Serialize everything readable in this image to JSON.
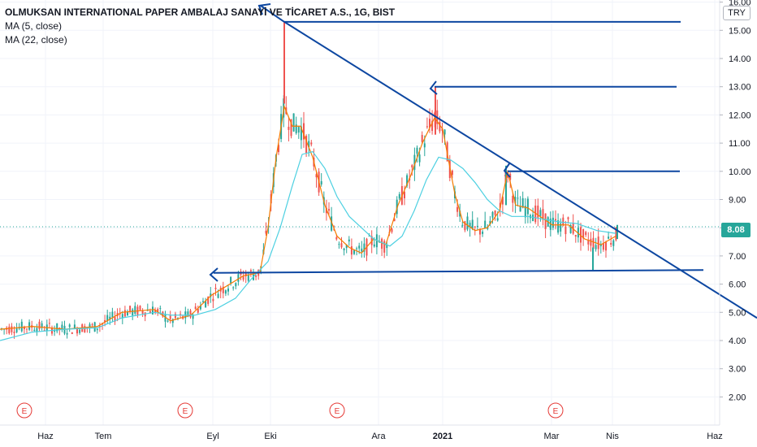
{
  "legend": {
    "title": "OLMUKSAN INTERNATIONAL PAPER AMBALAJ SANAYİ VE TİCARET A.S., 1G, BIST",
    "ma5": "MA (5, close)",
    "ma22": "MA (22, close)"
  },
  "currency": "TRY",
  "last_price_label": "8.08",
  "colors": {
    "up": "#26a69a",
    "down": "#ef5350",
    "ma5": "#f57c00",
    "ma22": "#4dd0e1",
    "trend": "#0d47a1",
    "event": "#e53935"
  },
  "chart_data": {
    "type": "line",
    "title": "OLMUKSAN INTERNATIONAL PAPER AMBALAJ SANAYİ VE TİCARET A.S., 1G, BIST",
    "ylim": [
      1.5,
      16.0
    ],
    "y_ticks": [
      "16.00",
      "15.00",
      "14.00",
      "13.00",
      "12.00",
      "11.00",
      "10.00",
      "9.00",
      "8.00",
      "7.00",
      "6.00",
      "5.00",
      "4.00",
      "3.00",
      "2.00"
    ],
    "x_ticks": [
      "Haz",
      "Tem",
      "Eyl",
      "Eki",
      "Ara",
      "2021",
      "Mar",
      "Nis",
      "Haz"
    ],
    "last_price": 8.08,
    "series": [
      {
        "name": "MA (5, close)",
        "points": [
          [
            0,
            4.4
          ],
          [
            40,
            4.5
          ],
          [
            80,
            4.4
          ],
          [
            120,
            4.5
          ],
          [
            150,
            5.0
          ],
          [
            190,
            5.1
          ],
          [
            210,
            4.7
          ],
          [
            235,
            4.9
          ],
          [
            260,
            5.6
          ],
          [
            300,
            6.3
          ],
          [
            320,
            6.4
          ],
          [
            330,
            8.0
          ],
          [
            340,
            10.5
          ],
          [
            350,
            12.3
          ],
          [
            360,
            11.6
          ],
          [
            370,
            11.6
          ],
          [
            385,
            10.5
          ],
          [
            400,
            8.8
          ],
          [
            415,
            7.7
          ],
          [
            430,
            7.3
          ],
          [
            445,
            7.1
          ],
          [
            460,
            7.6
          ],
          [
            475,
            7.4
          ],
          [
            490,
            8.8
          ],
          [
            505,
            9.8
          ],
          [
            520,
            11.0
          ],
          [
            535,
            11.9
          ],
          [
            545,
            11.5
          ],
          [
            560,
            9.2
          ],
          [
            570,
            8.2
          ],
          [
            585,
            7.9
          ],
          [
            600,
            8.0
          ],
          [
            615,
            8.6
          ],
          [
            625,
            10.0
          ],
          [
            635,
            8.8
          ],
          [
            650,
            8.7
          ],
          [
            665,
            8.4
          ],
          [
            680,
            8.1
          ],
          [
            700,
            8.1
          ],
          [
            720,
            7.6
          ],
          [
            740,
            7.4
          ],
          [
            758,
            7.7
          ]
        ]
      },
      {
        "name": "MA (22, close)",
        "points": [
          [
            0,
            4.0
          ],
          [
            40,
            4.3
          ],
          [
            80,
            4.4
          ],
          [
            120,
            4.45
          ],
          [
            150,
            4.8
          ],
          [
            190,
            5.0
          ],
          [
            210,
            4.9
          ],
          [
            240,
            4.9
          ],
          [
            265,
            5.1
          ],
          [
            290,
            5.5
          ],
          [
            310,
            6.2
          ],
          [
            330,
            6.8
          ],
          [
            345,
            8.0
          ],
          [
            360,
            9.5
          ],
          [
            372,
            10.6
          ],
          [
            385,
            10.7
          ],
          [
            400,
            10.1
          ],
          [
            415,
            9.1
          ],
          [
            430,
            8.4
          ],
          [
            445,
            8.0
          ],
          [
            460,
            7.6
          ],
          [
            480,
            7.35
          ],
          [
            495,
            7.7
          ],
          [
            510,
            8.6
          ],
          [
            525,
            9.7
          ],
          [
            540,
            10.5
          ],
          [
            555,
            10.4
          ],
          [
            570,
            10.1
          ],
          [
            585,
            9.6
          ],
          [
            600,
            9.0
          ],
          [
            615,
            8.6
          ],
          [
            630,
            8.4
          ],
          [
            650,
            8.4
          ],
          [
            670,
            8.3
          ],
          [
            690,
            8.2
          ],
          [
            710,
            8.15
          ],
          [
            735,
            7.9
          ],
          [
            758,
            7.8
          ]
        ]
      }
    ],
    "trend_lines": [
      [
        [
          350,
          15.3
        ],
        [
          932,
          4.8
        ]
      ],
      [
        [
          350,
          15.3
        ],
        [
          838,
          15.3
        ]
      ],
      [
        [
          535,
          13.0
        ],
        [
          833,
          13.0
        ]
      ],
      [
        [
          625,
          10.0
        ],
        [
          837,
          10.0
        ]
      ],
      [
        [
          263,
          6.4
        ],
        [
          866,
          6.5
        ]
      ]
    ],
    "events": [
      [
        "E",
        30
      ],
      [
        "E",
        228
      ],
      [
        "E",
        415
      ],
      [
        "E",
        684
      ]
    ]
  }
}
